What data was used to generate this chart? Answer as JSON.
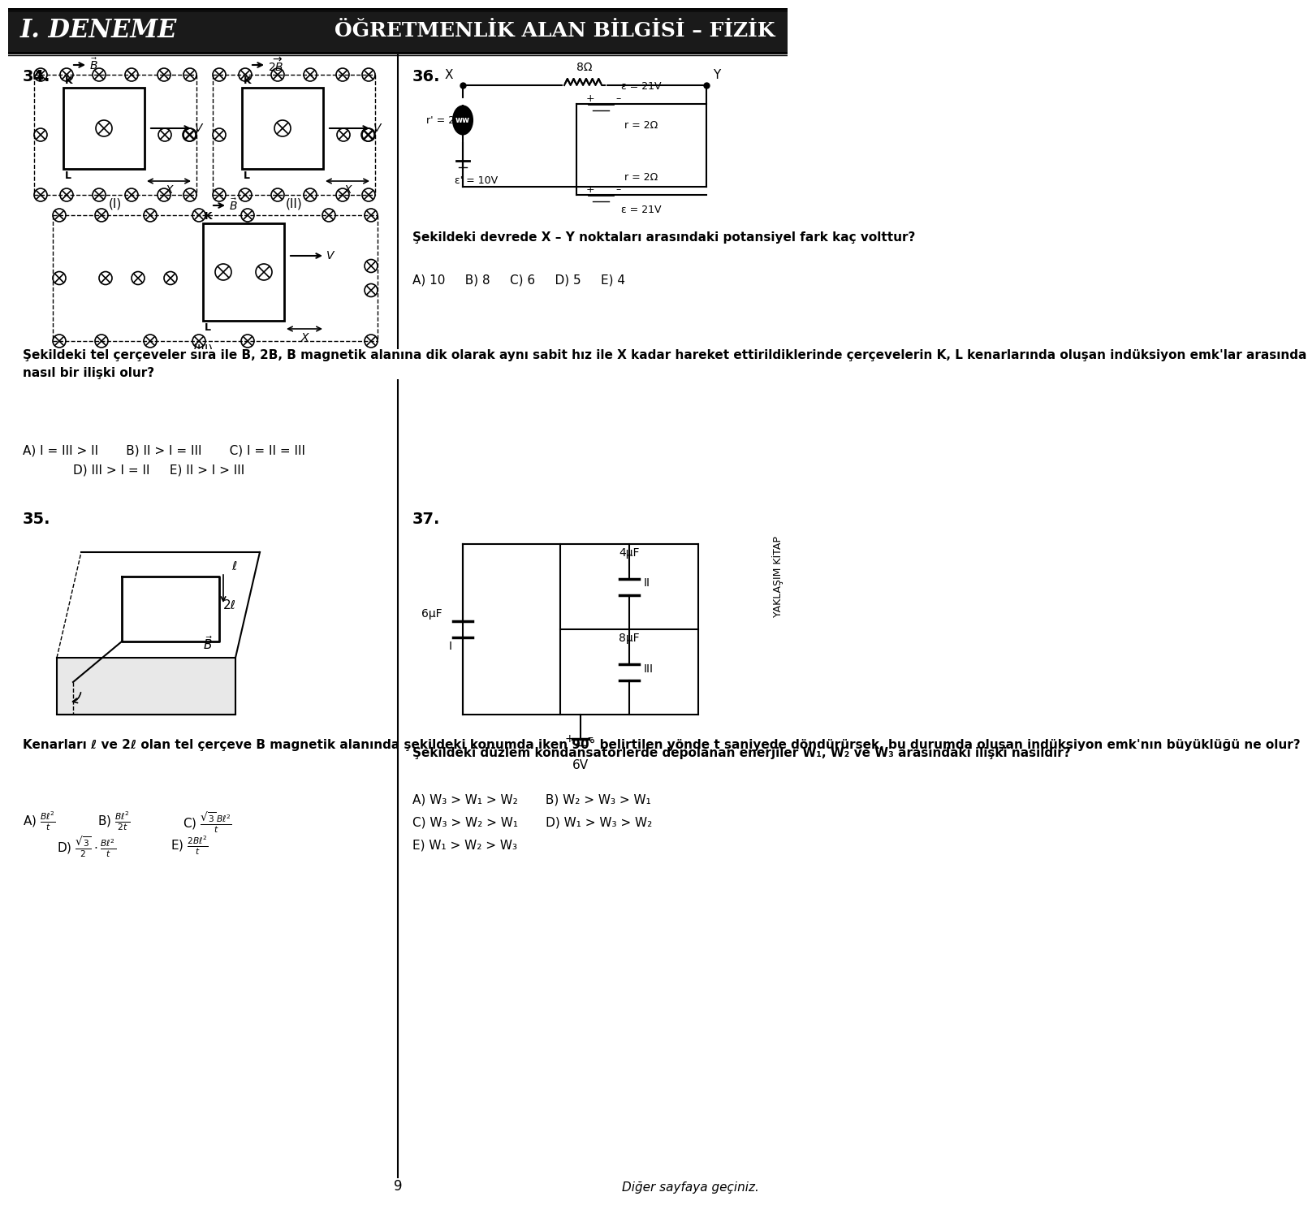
{
  "title_left": "I. DENEME",
  "title_right": "ÖĞRETMENLİK ALAN BİLGİSİ – FİZİK",
  "page_number": "9",
  "bg_color": "#ffffff",
  "text_color": "#000000",
  "header_bg": "#1a1a1a",
  "q34_number": "34.",
  "q36_number": "36.",
  "q35_number": "35.",
  "q37_number": "37.",
  "q34_text": "Şekildeki tel çerçeveler sıra ile B, 2B, B magnetik alanına dik olarak aynı sabit hız ile X kadar hareket ettirildiklerinde çerçevelerin K, L kenarlarında oluşan indüksiyon emk'lar arasında nasıl bir ilişki olur?",
  "q34_choices": [
    "A) I = III > II       B) II > I = III       C) I = II = III",
    "D) III > I = II     E) II > I > III"
  ],
  "q36_text": "Şekildeki devrede X – Y noktaları arasındaki potansiyel fark kaç volttur?",
  "q36_choices": "A) 10     B) 8     C) 6     D) 5     E) 4",
  "q35_text": "Kenarları ℓ ve 2ℓ olan tel çerçeve B magnetik alanında şekildeki konumda iken 90° belirtilen yönde t saniyede döndürürsek, bu durumda oluşan indüksiyon emk'nın büyüklüğü ne olur?",
  "q35_choices": [
    "A) Bℓ²/t     B) Bℓ²/2t     C) √3 Bℓ²/t",
    "D) (√3/2)(Bℓ²/t)     E) 2Bℓ²/t"
  ],
  "q37_text": "Şekildeki düzlem kondansatörlerde depolanan enerjiler W₁, W₂ ve W₃ arasındaki ilişki nasıldır?",
  "q37_choices": [
    "A) W₃ > W₁ > W₂       B) W₂ > W₃ > W₁",
    "C) W₃ > W₂ > W₁       D) W₁ > W₃ > W₂",
    "E) W₁ > W₂ > W₃"
  ],
  "sidebar_text": "YAKLAŞIM KİTAP"
}
